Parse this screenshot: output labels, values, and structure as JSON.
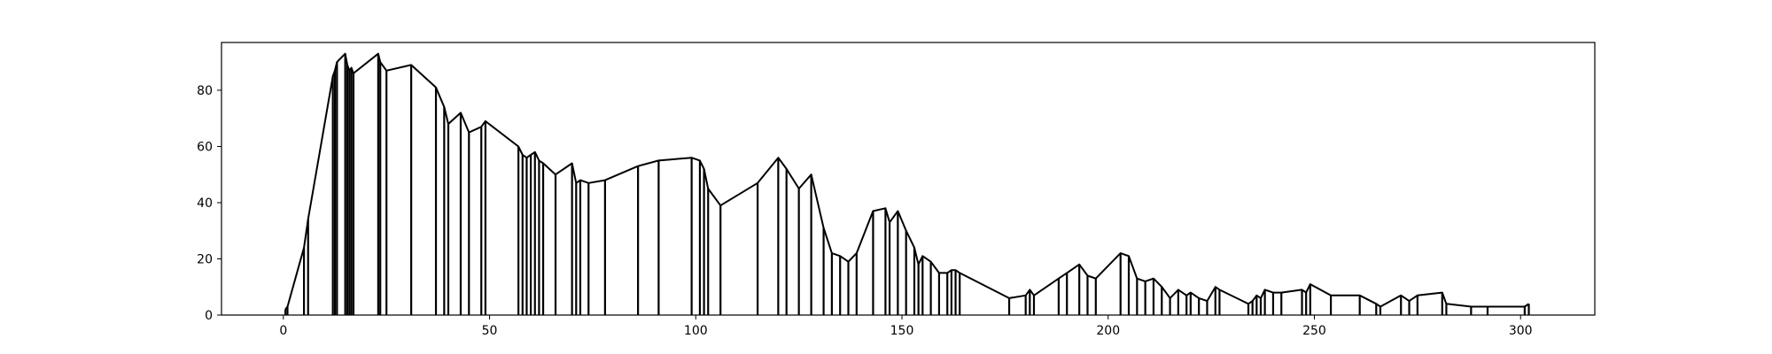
{
  "chart_data": {
    "type": "line",
    "title": "",
    "xlabel": "",
    "ylabel": "",
    "xlim": [
      -15,
      318
    ],
    "ylim": [
      0,
      97
    ],
    "grid": false,
    "legend": "none",
    "x_ticks": [
      0,
      50,
      100,
      150,
      200,
      250,
      300
    ],
    "y_ticks": [
      0,
      20,
      40,
      60,
      80
    ],
    "colors": {
      "line": "#000000",
      "axes": "#000000",
      "background": "#ffffff"
    },
    "series": [
      {
        "x": [
          0.5,
          1,
          5,
          6,
          12,
          12.5,
          13,
          15,
          15.5,
          16,
          16.5,
          17,
          23,
          23.5,
          25,
          31,
          37,
          39,
          40,
          43,
          45,
          48,
          49,
          57,
          58,
          59,
          60,
          61,
          62,
          63,
          66,
          70,
          71,
          72,
          74,
          78,
          86,
          91,
          99,
          101,
          102,
          103,
          106,
          115,
          120,
          122,
          125,
          128,
          131,
          133,
          135,
          137,
          139,
          143,
          146,
          147,
          149,
          151,
          153,
          154,
          155,
          157,
          159,
          161,
          162,
          163,
          164,
          176,
          180,
          181,
          182,
          188,
          190,
          193,
          195,
          197,
          203,
          205,
          207,
          209,
          211,
          213,
          215,
          217,
          219,
          220,
          222,
          224,
          226,
          227,
          234,
          235,
          236,
          237,
          238,
          240,
          242,
          247,
          248,
          249,
          254,
          261,
          265,
          266,
          271,
          273,
          275,
          281,
          282,
          288,
          292,
          301,
          302
        ],
        "y": [
          2,
          3,
          24,
          34,
          85,
          87,
          90,
          93,
          89,
          87,
          88,
          86,
          93,
          90,
          87,
          89,
          81,
          74,
          68,
          72,
          65,
          67,
          69,
          60,
          57,
          56,
          57,
          58,
          55,
          54,
          50,
          54,
          47,
          48,
          47,
          48,
          53,
          55,
          56,
          55,
          52,
          45,
          39,
          47,
          56,
          52,
          45,
          50,
          31,
          22,
          21,
          19,
          22,
          37,
          38,
          33,
          37,
          30,
          24,
          18,
          21,
          19,
          15,
          15,
          16,
          16,
          15,
          6,
          7,
          9,
          7,
          13,
          15,
          18,
          14,
          13,
          22,
          21,
          13,
          12,
          13,
          10,
          6,
          9,
          7,
          8,
          6,
          5,
          10,
          9,
          4,
          5,
          7,
          6,
          9,
          8,
          8,
          9,
          8,
          11,
          7,
          7,
          4,
          3,
          7,
          5,
          7,
          8,
          4,
          3,
          3,
          3,
          4
        ]
      }
    ]
  }
}
